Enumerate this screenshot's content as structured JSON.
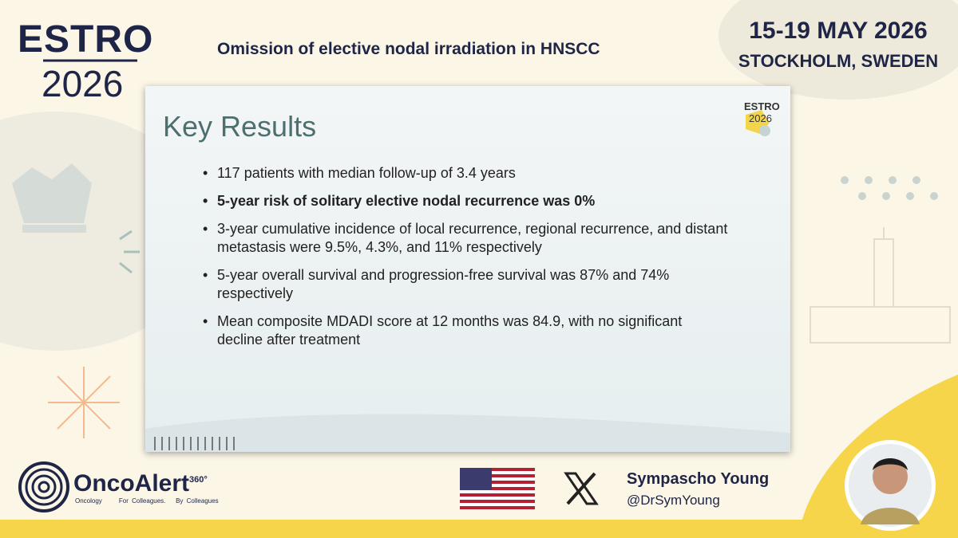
{
  "header": {
    "logo_top": "ESTRO",
    "logo_year": "2026",
    "title": "Omission of elective nodal irradiation in HNSCC",
    "dates": "15-19 MAY 2026",
    "location": "STOCKHOLM, SWEDEN"
  },
  "slide": {
    "title": "Key Results",
    "logo_top": "ESTRO",
    "logo_year": "2026",
    "bullets": [
      {
        "text": "117 patients with median follow-up of 3.4 years",
        "bold": false
      },
      {
        "text": "5-year risk of solitary elective nodal recurrence was 0%",
        "bold": true
      },
      {
        "text": "3-year cumulative incidence of local recurrence, regional recurrence, and distant metastasis were 9.5%, 4.3%, and 11% respectively",
        "bold": false
      },
      {
        "text": "5-year overall survival and progression-free survival was 87% and 74% respectively",
        "bold": false
      },
      {
        "text": "Mean composite MDADI score at 12 months was 84.9, with no significant decline after treatment",
        "bold": false
      }
    ]
  },
  "footer": {
    "brand": "OncoAlert",
    "brand_sup": "360°",
    "tagline": [
      "Oncology",
      "For Colleagues.",
      "By Colleagues"
    ],
    "author": "Sympascho Young",
    "handle": "@DrSymYoung"
  }
}
